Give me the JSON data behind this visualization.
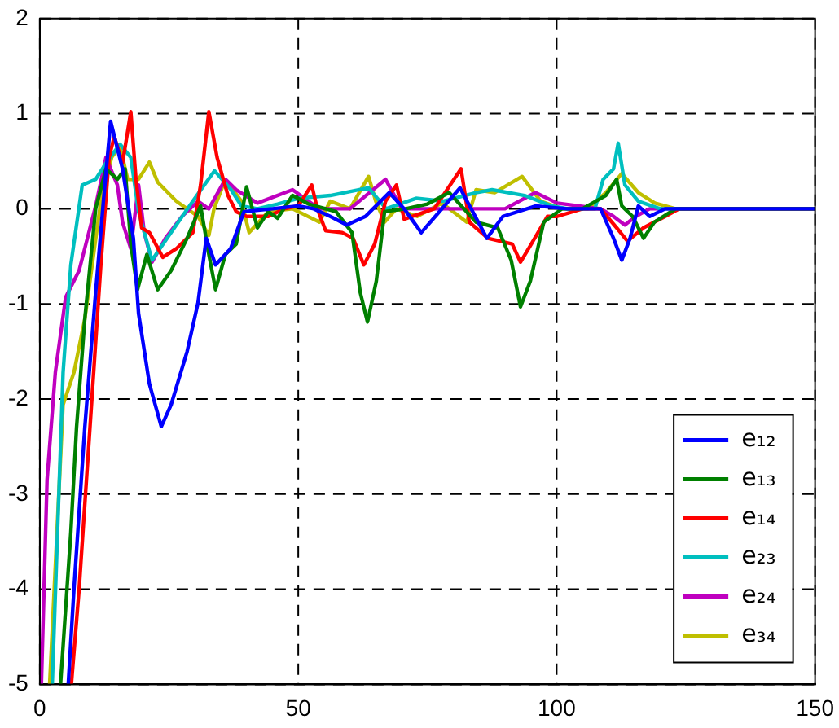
{
  "chart_data": {
    "type": "line",
    "xlim": [
      0,
      150
    ],
    "ylim": [
      -5,
      2
    ],
    "xticks": [
      0,
      50,
      100,
      150
    ],
    "yticks": [
      -5,
      -4,
      -3,
      -2,
      -1,
      0,
      1,
      2
    ],
    "grid": true,
    "legend": "bottom right",
    "marker": "none",
    "line_style": "solid",
    "series": [
      {
        "name": "e₁₂",
        "color": "#0000ff",
        "x": [
          5.5,
          6.6,
          8.7,
          10.8,
          12.3,
          13.7,
          16,
          18.1,
          19.1,
          21.2,
          23.5,
          25.4,
          28.5,
          30.6,
          32.2,
          34,
          36.9,
          39.5,
          45,
          50,
          53,
          56.2,
          59.4,
          63,
          67.6,
          70.5,
          73.8,
          77,
          81.3,
          86.5,
          89.6,
          96,
          102,
          108.5,
          111,
          112.6,
          114.2,
          115.8,
          118,
          121,
          150
        ],
        "values": [
          -5,
          -4,
          -2.3,
          -0.88,
          0.08,
          0.92,
          0.42,
          -0.31,
          -1.1,
          -1.84,
          -2.29,
          -2.06,
          -1.5,
          -0.99,
          -0.31,
          -0.59,
          -0.42,
          -0.03,
          0,
          0.03,
          0,
          -0.08,
          -0.17,
          -0.08,
          0.17,
          0,
          -0.25,
          -0.05,
          0.22,
          -0.31,
          -0.08,
          0.03,
          0,
          0,
          -0.31,
          -0.54,
          -0.31,
          0.03,
          -0.08,
          0,
          0
        ]
      },
      {
        "name": "e₁₃",
        "color": "#008000",
        "x": [
          4,
          6,
          7.1,
          8.7,
          10.8,
          12.8,
          15,
          16.5,
          17.6,
          18.9,
          20.7,
          22.8,
          25.4,
          28.5,
          31.1,
          32.7,
          34,
          35.9,
          38,
          40,
          42.1,
          44.2,
          46,
          48.9,
          52,
          57.3,
          60.4,
          62,
          63.4,
          65.1,
          66.7,
          70.8,
          75,
          79.2,
          84.4,
          88.6,
          91.2,
          93,
          94.9,
          97.5,
          101,
          105,
          109.5,
          111.6,
          112.6,
          114.7,
          116.8,
          118.9,
          123,
          150
        ],
        "values": [
          -5,
          -3.4,
          -2.3,
          -1.16,
          0,
          0.42,
          0.31,
          0.42,
          -0.37,
          -0.85,
          -0.48,
          -0.85,
          -0.65,
          -0.31,
          0.03,
          -0.48,
          -0.85,
          -0.48,
          -0.37,
          0.23,
          -0.2,
          -0.03,
          -0.1,
          0.14,
          0.05,
          -0.03,
          -0.25,
          -0.88,
          -1.19,
          -0.76,
          -0.03,
          0,
          0.05,
          0.17,
          -0.14,
          -0.2,
          -0.54,
          -1.03,
          -0.76,
          -0.14,
          0,
          0,
          0.14,
          0.31,
          0.03,
          -0.08,
          -0.31,
          -0.14,
          0,
          0
        ]
      },
      {
        "name": "e₁₄",
        "color": "#ff0000",
        "x": [
          6.1,
          7.6,
          9.7,
          11.8,
          13.4,
          14.4,
          16,
          17.6,
          18.6,
          19.7,
          21.2,
          23.8,
          26.4,
          29.6,
          31.1,
          32.7,
          34.3,
          36.4,
          38,
          40,
          44.2,
          47.3,
          50,
          52.6,
          53.7,
          55.3,
          58.5,
          60.6,
          62.7,
          64.8,
          66.9,
          69,
          70.5,
          76.3,
          81.5,
          83.1,
          86.7,
          91.4,
          93,
          95.1,
          98.2,
          100.1,
          105,
          108.5,
          111.6,
          113.7,
          116.8,
          121,
          123.7,
          150
        ],
        "values": [
          -5,
          -4,
          -2.3,
          -0.59,
          0.54,
          0.76,
          0.48,
          1.02,
          0.31,
          -0.2,
          -0.25,
          -0.51,
          -0.42,
          -0.25,
          0.25,
          1.02,
          0.54,
          0.14,
          -0.03,
          -0.08,
          -0.08,
          0,
          0.03,
          0.25,
          0,
          -0.23,
          -0.25,
          -0.31,
          -0.59,
          -0.37,
          0.08,
          0.25,
          -0.11,
          0,
          0.42,
          -0.14,
          -0.31,
          -0.37,
          -0.56,
          -0.37,
          -0.08,
          -0.08,
          0,
          0,
          -0.2,
          -0.34,
          -0.2,
          -0.08,
          0,
          0
        ]
      },
      {
        "name": "e₂₃",
        "color": "#00bfbf",
        "x": [
          2.4,
          4.5,
          6,
          8.2,
          10.8,
          12.8,
          15.5,
          17.6,
          19.1,
          21.7,
          25.4,
          29.6,
          33.8,
          37,
          39,
          42.1,
          46,
          50,
          56.2,
          63.6,
          67,
          72.8,
          78,
          84.4,
          87.5,
          93.8,
          99,
          102.2,
          107.4,
          109,
          111,
          111.9,
          113.2,
          115.8,
          120,
          150
        ],
        "values": [
          -5,
          -1.72,
          -0.59,
          0.25,
          0.31,
          0.48,
          0.68,
          0.54,
          -0.03,
          -0.54,
          -0.25,
          0.08,
          0.4,
          0.2,
          0.03,
          0,
          0.05,
          0.11,
          0.14,
          0.22,
          0,
          0.11,
          0.08,
          0.17,
          0.2,
          0.14,
          0.03,
          0,
          0,
          0.31,
          0.42,
          0.69,
          0.25,
          0.08,
          0,
          0
        ]
      },
      {
        "name": "e₂₄",
        "color": "#bf00bf",
        "x": [
          0.3,
          1.4,
          3,
          5,
          7.6,
          10.8,
          12.8,
          15,
          16,
          17.6,
          19.1,
          20.2,
          21.7,
          24.3,
          27.5,
          30.6,
          32.7,
          35.9,
          38,
          42.1,
          48.9,
          54,
          60,
          66.9,
          70,
          80,
          90,
          93.8,
          95.9,
          100.1,
          108.5,
          111,
          113.2,
          115.3,
          118,
          150
        ],
        "values": [
          -5,
          -2.85,
          -1.72,
          -0.93,
          -0.65,
          0.03,
          0.54,
          0.25,
          -0.14,
          -0.42,
          0.25,
          -0.25,
          -0.56,
          -0.31,
          -0.08,
          0.08,
          0,
          0.31,
          0.2,
          0.06,
          0.2,
          0,
          0,
          0.31,
          0,
          0,
          0,
          0.11,
          0.17,
          0.06,
          0,
          -0.08,
          -0.17,
          -0.08,
          0,
          0
        ]
      },
      {
        "name": "e₃₄",
        "color": "#bfbf00",
        "x": [
          1.9,
          4.5,
          6.6,
          8.7,
          11.8,
          13.9,
          15.5,
          17,
          19.1,
          21.2,
          22.8,
          26.4,
          30.6,
          32.7,
          33.7,
          35.9,
          39,
          40.5,
          44.2,
          48.9,
          54.1,
          56.2,
          60,
          63.6,
          65,
          66.7,
          69,
          73,
          77.8,
          82.6,
          84.4,
          88,
          93.3,
          96.9,
          101,
          106,
          109.5,
          112.6,
          115.8,
          119,
          123,
          150
        ],
        "values": [
          -5,
          -2.06,
          -1.72,
          -1.16,
          0.08,
          0.54,
          0.66,
          0.31,
          0.31,
          0.49,
          0.28,
          0.08,
          -0.08,
          -0.28,
          0,
          0.31,
          0.08,
          -0.25,
          -0.03,
          0,
          -0.14,
          0.08,
          0,
          0.34,
          0.08,
          -0.14,
          0,
          -0.08,
          0.06,
          -0.14,
          0.2,
          0.17,
          0.34,
          0.08,
          0,
          0,
          0.17,
          0.37,
          0.17,
          0.06,
          0,
          0
        ]
      }
    ]
  }
}
